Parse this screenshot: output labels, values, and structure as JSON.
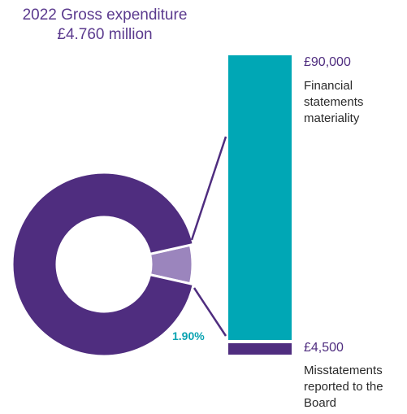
{
  "colors": {
    "donut_main": "#4f2d7f",
    "donut_slice": "#9b85bd",
    "bar_teal": "#00a7b5",
    "bar_purple": "#4f2d7f",
    "title_text": "#5b3a8e",
    "pct_text": "#0aa3b1"
  },
  "title": {
    "line1": "2022 Gross expenditure",
    "line2": "£4.760 million"
  },
  "callouts": {
    "materiality": {
      "amount": "£90,000",
      "label_lines": [
        "Financial",
        "statements",
        "materiality"
      ]
    },
    "misstatements": {
      "amount": "£4,500",
      "label_lines": [
        "Misstatements",
        "reported to the",
        "Board"
      ]
    }
  },
  "slice_label": "1.90%",
  "chart_data": {
    "type": "pie",
    "title": "2022 Gross expenditure £4.760 million",
    "slices": [
      {
        "label": "1.90%",
        "value": 1.9
      },
      {
        "label": "",
        "value": 98.1
      }
    ],
    "bar": {
      "segments": [
        {
          "label": "£90,000",
          "value": 90000
        },
        {
          "label": "£4,500",
          "value": 4500
        }
      ]
    }
  }
}
